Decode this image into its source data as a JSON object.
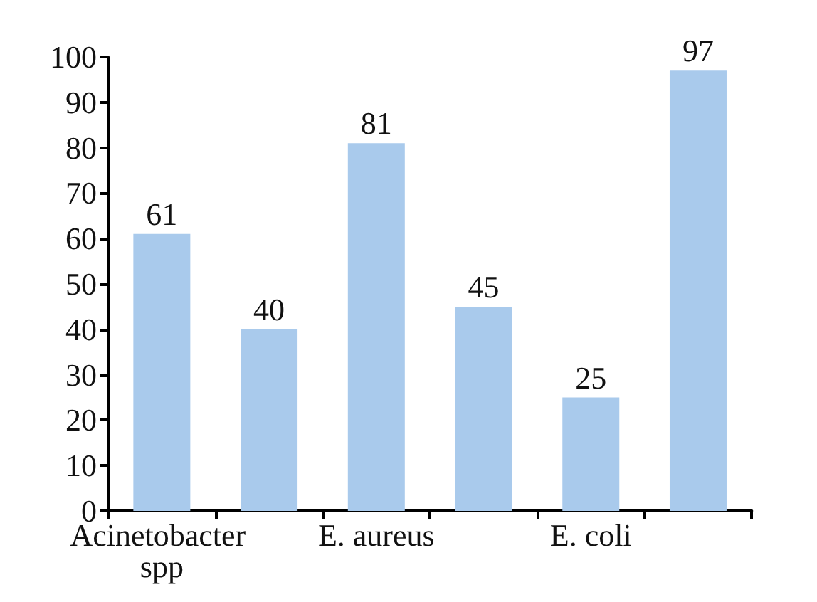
{
  "chart_data": {
    "type": "bar",
    "categories": [
      "Acinetobacter spp",
      null,
      "E. aureus",
      null,
      "E. coli",
      null
    ],
    "values": [
      61,
      40,
      81,
      45,
      25,
      97
    ],
    "color": "#a9caec",
    "ylim": [
      0,
      100
    ],
    "yticks": [
      0,
      10,
      20,
      30,
      40,
      50,
      60,
      70,
      80,
      90,
      100
    ],
    "data_labels": true
  }
}
